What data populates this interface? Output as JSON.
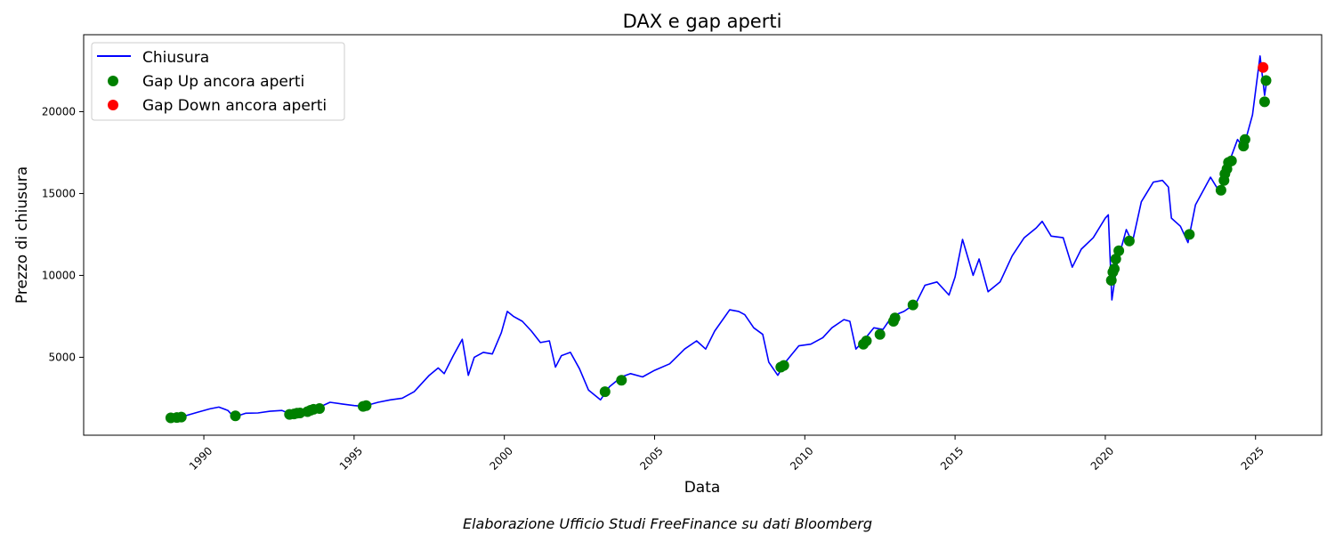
{
  "chart_data": {
    "type": "line",
    "title": "DAX e gap aperti",
    "xlabel": "Data",
    "ylabel": "Prezzo di chiusura",
    "caption": "Elaborazione Ufficio Studi FreeFinance su dati Bloomberg",
    "xlim": [
      1986.0,
      2027.2
    ],
    "ylim": [
      240,
      24700
    ],
    "x_ticks": [
      1990,
      1995,
      2000,
      2005,
      2010,
      2015,
      2020,
      2025
    ],
    "y_ticks": [
      5000,
      10000,
      15000,
      20000
    ],
    "grid": false,
    "legend_position": "upper-left",
    "colors": {
      "line": "#0000ff",
      "gap_up": "#008000",
      "gap_down": "#ff0000"
    },
    "series": [
      {
        "name": "Chiusura",
        "kind": "line",
        "points": [
          [
            1988.9,
            1290
          ],
          [
            1989.3,
            1380
          ],
          [
            1989.8,
            1650
          ],
          [
            1990.2,
            1850
          ],
          [
            1990.5,
            1960
          ],
          [
            1990.8,
            1750
          ],
          [
            1991.0,
            1350
          ],
          [
            1991.4,
            1580
          ],
          [
            1991.8,
            1600
          ],
          [
            1992.2,
            1700
          ],
          [
            1992.6,
            1750
          ],
          [
            1992.9,
            1520
          ],
          [
            1993.2,
            1600
          ],
          [
            1993.5,
            1750
          ],
          [
            1993.9,
            2000
          ],
          [
            1994.2,
            2250
          ],
          [
            1994.6,
            2150
          ],
          [
            1995.0,
            2050
          ],
          [
            1995.3,
            2000
          ],
          [
            1995.8,
            2250
          ],
          [
            1996.2,
            2400
          ],
          [
            1996.6,
            2500
          ],
          [
            1997.0,
            2900
          ],
          [
            1997.5,
            3900
          ],
          [
            1997.8,
            4350
          ],
          [
            1998.0,
            4000
          ],
          [
            1998.3,
            5100
          ],
          [
            1998.6,
            6100
          ],
          [
            1998.8,
            3900
          ],
          [
            1999.0,
            5000
          ],
          [
            1999.3,
            5300
          ],
          [
            1999.6,
            5200
          ],
          [
            1999.9,
            6500
          ],
          [
            2000.1,
            7800
          ],
          [
            2000.3,
            7500
          ],
          [
            2000.6,
            7200
          ],
          [
            2000.9,
            6600
          ],
          [
            2001.2,
            5900
          ],
          [
            2001.5,
            6000
          ],
          [
            2001.7,
            4400
          ],
          [
            2001.9,
            5100
          ],
          [
            2002.2,
            5300
          ],
          [
            2002.5,
            4300
          ],
          [
            2002.8,
            3000
          ],
          [
            2003.2,
            2400
          ],
          [
            2003.5,
            3200
          ],
          [
            2003.9,
            3800
          ],
          [
            2004.2,
            4000
          ],
          [
            2004.6,
            3800
          ],
          [
            2005.0,
            4200
          ],
          [
            2005.5,
            4600
          ],
          [
            2006.0,
            5500
          ],
          [
            2006.4,
            6000
          ],
          [
            2006.7,
            5500
          ],
          [
            2007.0,
            6600
          ],
          [
            2007.5,
            7900
          ],
          [
            2007.8,
            7800
          ],
          [
            2008.0,
            7600
          ],
          [
            2008.3,
            6800
          ],
          [
            2008.6,
            6400
          ],
          [
            2008.8,
            4700
          ],
          [
            2009.1,
            3900
          ],
          [
            2009.4,
            4800
          ],
          [
            2009.8,
            5700
          ],
          [
            2010.2,
            5800
          ],
          [
            2010.6,
            6200
          ],
          [
            2010.9,
            6800
          ],
          [
            2011.3,
            7300
          ],
          [
            2011.5,
            7200
          ],
          [
            2011.7,
            5500
          ],
          [
            2011.9,
            5900
          ],
          [
            2012.3,
            6800
          ],
          [
            2012.6,
            6700
          ],
          [
            2012.9,
            7500
          ],
          [
            2013.3,
            7800
          ],
          [
            2013.7,
            8300
          ],
          [
            2014.0,
            9400
          ],
          [
            2014.4,
            9600
          ],
          [
            2014.8,
            8800
          ],
          [
            2015.0,
            9900
          ],
          [
            2015.25,
            12200
          ],
          [
            2015.6,
            10000
          ],
          [
            2015.8,
            11000
          ],
          [
            2016.1,
            9000
          ],
          [
            2016.5,
            9600
          ],
          [
            2016.9,
            11200
          ],
          [
            2017.3,
            12300
          ],
          [
            2017.7,
            12900
          ],
          [
            2017.9,
            13300
          ],
          [
            2018.2,
            12400
          ],
          [
            2018.6,
            12300
          ],
          [
            2018.9,
            10500
          ],
          [
            2019.2,
            11600
          ],
          [
            2019.6,
            12300
          ],
          [
            2020.0,
            13500
          ],
          [
            2020.1,
            13700
          ],
          [
            2020.22,
            8500
          ],
          [
            2020.4,
            10800
          ],
          [
            2020.7,
            12800
          ],
          [
            2020.9,
            12000
          ],
          [
            2021.2,
            14500
          ],
          [
            2021.6,
            15700
          ],
          [
            2021.9,
            15800
          ],
          [
            2022.1,
            15400
          ],
          [
            2022.2,
            13500
          ],
          [
            2022.5,
            13000
          ],
          [
            2022.75,
            12000
          ],
          [
            2023.0,
            14300
          ],
          [
            2023.5,
            16000
          ],
          [
            2023.8,
            15100
          ],
          [
            2024.1,
            16800
          ],
          [
            2024.4,
            18300
          ],
          [
            2024.6,
            17800
          ],
          [
            2024.9,
            19800
          ],
          [
            2025.15,
            23400
          ],
          [
            2025.3,
            21000
          ],
          [
            2025.4,
            22200
          ]
        ]
      },
      {
        "name": "Gap Up ancora aperti",
        "kind": "scatter",
        "points": [
          [
            1988.9,
            1300
          ],
          [
            1989.1,
            1320
          ],
          [
            1989.25,
            1350
          ],
          [
            1991.05,
            1420
          ],
          [
            1992.85,
            1510
          ],
          [
            1993.0,
            1540
          ],
          [
            1993.1,
            1580
          ],
          [
            1993.2,
            1600
          ],
          [
            1993.45,
            1680
          ],
          [
            1993.55,
            1760
          ],
          [
            1993.65,
            1820
          ],
          [
            1993.85,
            1870
          ],
          [
            1995.3,
            2000
          ],
          [
            1995.4,
            2050
          ],
          [
            2003.35,
            2900
          ],
          [
            2003.9,
            3600
          ],
          [
            2009.2,
            4400
          ],
          [
            2009.3,
            4500
          ],
          [
            2011.95,
            5800
          ],
          [
            2012.05,
            6000
          ],
          [
            2012.5,
            6400
          ],
          [
            2012.95,
            7200
          ],
          [
            2013.0,
            7400
          ],
          [
            2013.6,
            8200
          ],
          [
            2020.2,
            9700
          ],
          [
            2020.25,
            10200
          ],
          [
            2020.3,
            10400
          ],
          [
            2020.35,
            11000
          ],
          [
            2020.45,
            11500
          ],
          [
            2020.8,
            12100
          ],
          [
            2022.8,
            12500
          ],
          [
            2023.85,
            15200
          ],
          [
            2023.95,
            15800
          ],
          [
            2023.98,
            16200
          ],
          [
            2024.05,
            16500
          ],
          [
            2024.1,
            16900
          ],
          [
            2024.2,
            17000
          ],
          [
            2024.6,
            17900
          ],
          [
            2024.65,
            18300
          ],
          [
            2025.3,
            20600
          ],
          [
            2025.35,
            21900
          ]
        ]
      },
      {
        "name": "Gap Down ancora aperti",
        "kind": "scatter",
        "points": [
          [
            2025.25,
            22700
          ]
        ]
      }
    ]
  }
}
